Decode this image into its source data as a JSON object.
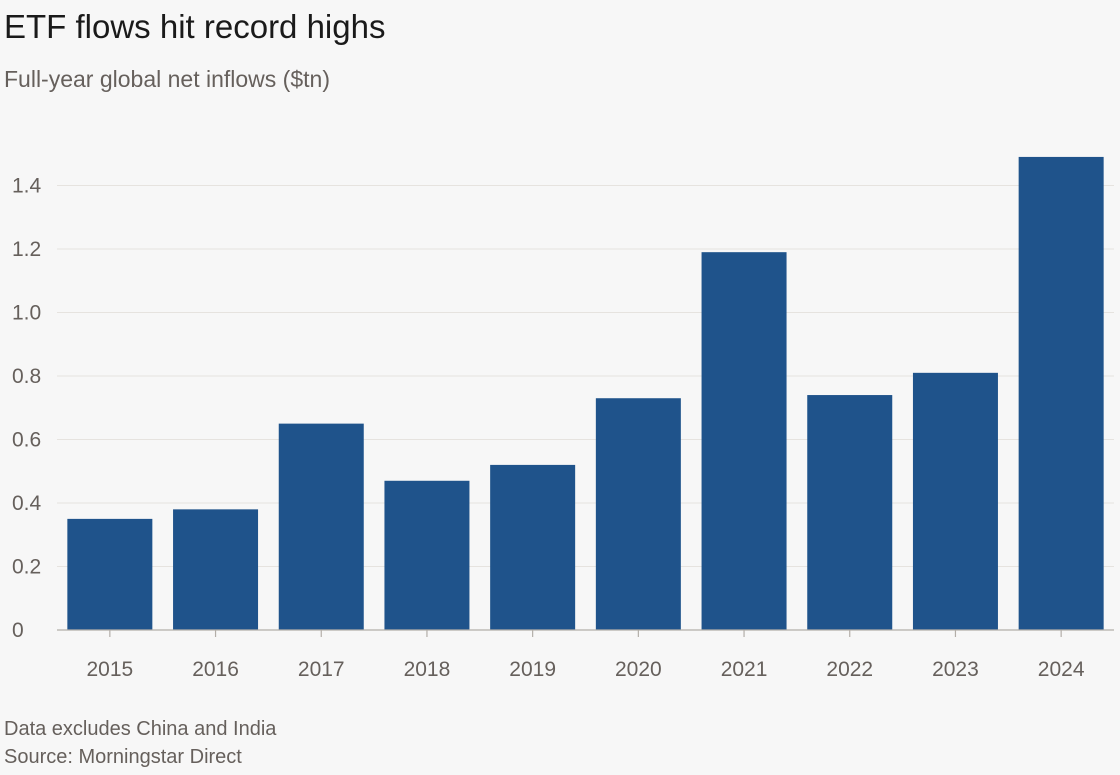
{
  "title": "ETF flows hit record highs",
  "subtitle": "Full-year global net inflows ($tn)",
  "note": "Data excludes China and India",
  "source": "Source: Morningstar Direct",
  "colors": {
    "bar": "#1f538b",
    "grid": "#e6e3df",
    "axis": "#b3aea8",
    "text": "#66605c"
  },
  "chart_data": {
    "type": "bar",
    "title": "ETF flows hit record highs",
    "subtitle": "Full-year global net inflows ($tn)",
    "xlabel": "",
    "ylabel": "",
    "categories": [
      "2015",
      "2016",
      "2017",
      "2018",
      "2019",
      "2020",
      "2021",
      "2022",
      "2023",
      "2024"
    ],
    "values": [
      0.35,
      0.38,
      0.65,
      0.47,
      0.52,
      0.73,
      1.19,
      0.74,
      0.81,
      1.49
    ],
    "ylim": [
      0,
      1.5
    ],
    "yticks": [
      "0",
      "0.2",
      "0.4",
      "0.6",
      "0.8",
      "1.0",
      "1.2",
      "1.4"
    ],
    "ytick_values": [
      0,
      0.2,
      0.4,
      0.6,
      0.8,
      1.0,
      1.2,
      1.4
    ],
    "grid": true
  }
}
